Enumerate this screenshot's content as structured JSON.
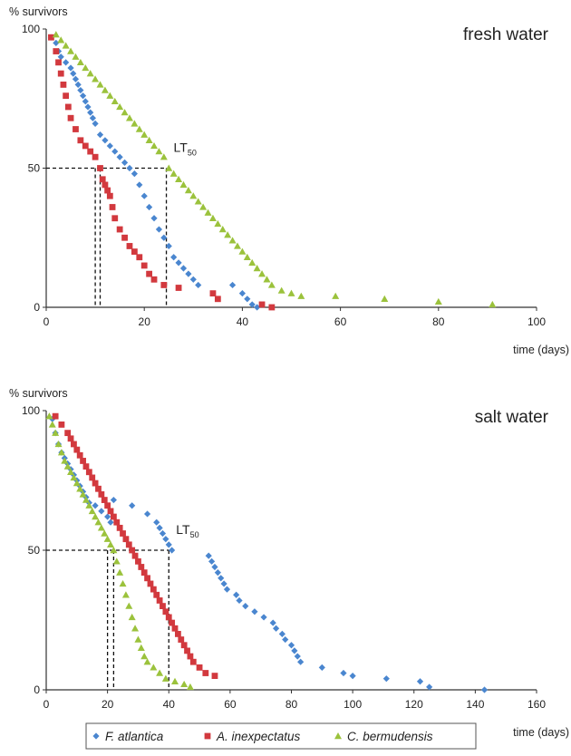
{
  "colors": {
    "F. atlantica": "#4a86cf",
    "A. inexpectatus": "#d2393e",
    "C. bermudensis": "#9bc23c"
  },
  "legend": {
    "items": [
      {
        "name": "F. atlantica",
        "marker": "diamond"
      },
      {
        "name": "A. inexpectatus",
        "marker": "square"
      },
      {
        "name": "C. bermudensis",
        "marker": "triangle"
      }
    ]
  },
  "chart_data": [
    {
      "type": "scatter",
      "title": "fresh water",
      "ylabel": "% survivors",
      "xlabel": "time (days)",
      "xlim": [
        0,
        100
      ],
      "ylim": [
        0,
        100
      ],
      "xticks": [
        "0",
        "20",
        "40",
        "60",
        "80",
        "100"
      ],
      "yticks": [
        "0",
        "50",
        "100"
      ],
      "lt50": {
        "label": "LT",
        "subscript": "50",
        "y": 50,
        "x": [
          10,
          11,
          24.5
        ]
      },
      "series": [
        {
          "name": "F. atlantica",
          "marker": "diamond",
          "points": [
            [
              1,
              97
            ],
            [
              2,
              95
            ],
            [
              2.5,
              92
            ],
            [
              3,
              90
            ],
            [
              4,
              88
            ],
            [
              5,
              86
            ],
            [
              5.5,
              84
            ],
            [
              6,
              82
            ],
            [
              6.5,
              80
            ],
            [
              7,
              78
            ],
            [
              7.5,
              76
            ],
            [
              8,
              74
            ],
            [
              8.5,
              72
            ],
            [
              9,
              70
            ],
            [
              9.5,
              68
            ],
            [
              10,
              66
            ],
            [
              11,
              62
            ],
            [
              12,
              60
            ],
            [
              13,
              58
            ],
            [
              14,
              56
            ],
            [
              15,
              54
            ],
            [
              16,
              52
            ],
            [
              17,
              50
            ],
            [
              18,
              48
            ],
            [
              19,
              44
            ],
            [
              20,
              40
            ],
            [
              21,
              36
            ],
            [
              22,
              32
            ],
            [
              23,
              28
            ],
            [
              24,
              25
            ],
            [
              25,
              22
            ],
            [
              26,
              18
            ],
            [
              27,
              16
            ],
            [
              28,
              14
            ],
            [
              29,
              12
            ],
            [
              30,
              10
            ],
            [
              31,
              8
            ],
            [
              38,
              8
            ],
            [
              40,
              5
            ],
            [
              41,
              3
            ],
            [
              42,
              1
            ],
            [
              43,
              0
            ]
          ]
        },
        {
          "name": "A. inexpectatus",
          "marker": "square",
          "points": [
            [
              1,
              97
            ],
            [
              2,
              92
            ],
            [
              2.5,
              88
            ],
            [
              3,
              84
            ],
            [
              3.5,
              80
            ],
            [
              4,
              76
            ],
            [
              4.5,
              72
            ],
            [
              5,
              68
            ],
            [
              6,
              64
            ],
            [
              7,
              60
            ],
            [
              8,
              58
            ],
            [
              9,
              56
            ],
            [
              10,
              54
            ],
            [
              11,
              50
            ],
            [
              11.5,
              46
            ],
            [
              12,
              44
            ],
            [
              12.5,
              42
            ],
            [
              13,
              40
            ],
            [
              13.5,
              36
            ],
            [
              14,
              32
            ],
            [
              15,
              28
            ],
            [
              16,
              25
            ],
            [
              17,
              22
            ],
            [
              18,
              20
            ],
            [
              19,
              18
            ],
            [
              20,
              15
            ],
            [
              21,
              12
            ],
            [
              22,
              10
            ],
            [
              24,
              8
            ],
            [
              27,
              7
            ],
            [
              34,
              5
            ],
            [
              35,
              3
            ],
            [
              44,
              1
            ],
            [
              46,
              0
            ]
          ]
        },
        {
          "name": "C. bermudensis",
          "marker": "triangle",
          "points": [
            [
              2,
              98
            ],
            [
              3,
              96
            ],
            [
              4,
              94
            ],
            [
              5,
              92
            ],
            [
              6,
              90
            ],
            [
              7,
              88
            ],
            [
              8,
              86
            ],
            [
              9,
              84
            ],
            [
              10,
              82
            ],
            [
              11,
              80
            ],
            [
              12,
              78
            ],
            [
              13,
              76
            ],
            [
              14,
              74
            ],
            [
              15,
              72
            ],
            [
              16,
              70
            ],
            [
              17,
              68
            ],
            [
              18,
              66
            ],
            [
              19,
              64
            ],
            [
              20,
              62
            ],
            [
              21,
              60
            ],
            [
              22,
              58
            ],
            [
              23,
              56
            ],
            [
              24,
              54
            ],
            [
              25,
              50
            ],
            [
              26,
              48
            ],
            [
              27,
              46
            ],
            [
              28,
              44
            ],
            [
              29,
              42
            ],
            [
              30,
              40
            ],
            [
              31,
              38
            ],
            [
              32,
              36
            ],
            [
              33,
              34
            ],
            [
              34,
              32
            ],
            [
              35,
              30
            ],
            [
              36,
              28
            ],
            [
              37,
              26
            ],
            [
              38,
              24
            ],
            [
              39,
              22
            ],
            [
              40,
              20
            ],
            [
              41,
              18
            ],
            [
              42,
              16
            ],
            [
              43,
              14
            ],
            [
              44,
              12
            ],
            [
              45,
              10
            ],
            [
              46,
              8
            ],
            [
              48,
              6
            ],
            [
              50,
              5
            ],
            [
              52,
              4
            ],
            [
              59,
              4
            ],
            [
              69,
              3
            ],
            [
              80,
              2
            ],
            [
              91,
              1
            ]
          ]
        }
      ]
    },
    {
      "type": "scatter",
      "title": "salt water",
      "ylabel": "% survivors",
      "xlabel": "time (days)",
      "xlim": [
        0,
        160
      ],
      "ylim": [
        0,
        100
      ],
      "xticks": [
        "0",
        "20",
        "40",
        "60",
        "80",
        "100",
        "120",
        "140",
        "160"
      ],
      "yticks": [
        "0",
        "50",
        "100"
      ],
      "lt50": {
        "label": "LT",
        "subscript": "50",
        "y": 50,
        "x": [
          20,
          22,
          40
        ]
      },
      "series": [
        {
          "name": "F. atlantica",
          "marker": "diamond",
          "points": [
            [
              2,
              97
            ],
            [
              3,
              92
            ],
            [
              4,
              88
            ],
            [
              5,
              85
            ],
            [
              6,
              83
            ],
            [
              7,
              81
            ],
            [
              8,
              79
            ],
            [
              9,
              77
            ],
            [
              10,
              75
            ],
            [
              11,
              73
            ],
            [
              12,
              71
            ],
            [
              13,
              69
            ],
            [
              14,
              67
            ],
            [
              16,
              66
            ],
            [
              18,
              64
            ],
            [
              20,
              62
            ],
            [
              21,
              60
            ],
            [
              22,
              68
            ],
            [
              28,
              66
            ],
            [
              33,
              63
            ],
            [
              36,
              60
            ],
            [
              37,
              58
            ],
            [
              38,
              56
            ],
            [
              39,
              54
            ],
            [
              40,
              52
            ],
            [
              41,
              50
            ],
            [
              53,
              48
            ],
            [
              54,
              46
            ],
            [
              55,
              44
            ],
            [
              56,
              42
            ],
            [
              57,
              40
            ],
            [
              58,
              38
            ],
            [
              59,
              36
            ],
            [
              62,
              34
            ],
            [
              63,
              32
            ],
            [
              65,
              30
            ],
            [
              68,
              28
            ],
            [
              71,
              26
            ],
            [
              74,
              24
            ],
            [
              75,
              22
            ],
            [
              77,
              20
            ],
            [
              78,
              18
            ],
            [
              80,
              16
            ],
            [
              81,
              14
            ],
            [
              82,
              12
            ],
            [
              83,
              10
            ],
            [
              90,
              8
            ],
            [
              97,
              6
            ],
            [
              100,
              5
            ],
            [
              111,
              4
            ],
            [
              122,
              3
            ],
            [
              125,
              1
            ],
            [
              143,
              0
            ]
          ]
        },
        {
          "name": "A. inexpectatus",
          "marker": "square",
          "points": [
            [
              3,
              98
            ],
            [
              5,
              95
            ],
            [
              7,
              92
            ],
            [
              8,
              90
            ],
            [
              9,
              88
            ],
            [
              10,
              86
            ],
            [
              11,
              84
            ],
            [
              12,
              82
            ],
            [
              13,
              80
            ],
            [
              14,
              78
            ],
            [
              15,
              76
            ],
            [
              16,
              74
            ],
            [
              17,
              72
            ],
            [
              18,
              70
            ],
            [
              19,
              68
            ],
            [
              20,
              66
            ],
            [
              21,
              64
            ],
            [
              22,
              62
            ],
            [
              23,
              60
            ],
            [
              24,
              58
            ],
            [
              25,
              56
            ],
            [
              26,
              54
            ],
            [
              27,
              52
            ],
            [
              28,
              50
            ],
            [
              29,
              48
            ],
            [
              30,
              46
            ],
            [
              31,
              44
            ],
            [
              32,
              42
            ],
            [
              33,
              40
            ],
            [
              34,
              38
            ],
            [
              35,
              36
            ],
            [
              36,
              34
            ],
            [
              37,
              32
            ],
            [
              38,
              30
            ],
            [
              39,
              28
            ],
            [
              40,
              26
            ],
            [
              41,
              24
            ],
            [
              42,
              22
            ],
            [
              43,
              20
            ],
            [
              44,
              18
            ],
            [
              45,
              16
            ],
            [
              46,
              14
            ],
            [
              47,
              12
            ],
            [
              48,
              10
            ],
            [
              50,
              8
            ],
            [
              52,
              6
            ],
            [
              55,
              5
            ]
          ]
        },
        {
          "name": "C. bermudensis",
          "marker": "triangle",
          "points": [
            [
              1,
              98
            ],
            [
              2,
              95
            ],
            [
              3,
              92
            ],
            [
              4,
              88
            ],
            [
              5,
              85
            ],
            [
              6,
              82
            ],
            [
              7,
              80
            ],
            [
              8,
              78
            ],
            [
              9,
              76
            ],
            [
              10,
              74
            ],
            [
              11,
              72
            ],
            [
              12,
              70
            ],
            [
              13,
              68
            ],
            [
              14,
              66
            ],
            [
              15,
              64
            ],
            [
              16,
              62
            ],
            [
              17,
              60
            ],
            [
              18,
              58
            ],
            [
              19,
              56
            ],
            [
              20,
              54
            ],
            [
              21,
              52
            ],
            [
              22,
              50
            ],
            [
              23,
              46
            ],
            [
              24,
              42
            ],
            [
              25,
              38
            ],
            [
              26,
              34
            ],
            [
              27,
              30
            ],
            [
              28,
              26
            ],
            [
              29,
              22
            ],
            [
              30,
              18
            ],
            [
              31,
              15
            ],
            [
              32,
              12
            ],
            [
              33,
              10
            ],
            [
              35,
              8
            ],
            [
              37,
              6
            ],
            [
              39,
              4
            ],
            [
              42,
              3
            ],
            [
              45,
              2
            ],
            [
              47,
              1
            ]
          ]
        }
      ]
    }
  ]
}
